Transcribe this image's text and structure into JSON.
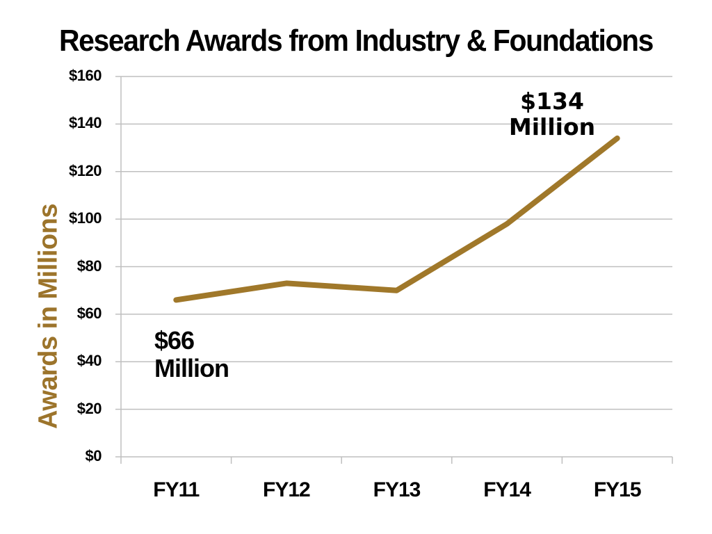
{
  "chart_data": {
    "type": "line",
    "title": "Research Awards from Industry & Foundations",
    "xlabel": "",
    "ylabel": "Awards in Millions",
    "categories": [
      "FY11",
      "FY12",
      "FY13",
      "FY14",
      "FY15"
    ],
    "series": [
      {
        "name": "Research Awards",
        "values": [
          66,
          73,
          70,
          98,
          134
        ],
        "color": "#A0782A"
      }
    ],
    "ylim": [
      0,
      160
    ],
    "y_ticks": [
      "$0",
      "$20",
      "$40",
      "$60",
      "$80",
      "$100",
      "$120",
      "$140",
      "$160"
    ],
    "grid": true,
    "legend": "none",
    "annotations": [
      {
        "text_line1": "$66",
        "text_line2": "Million",
        "category": "FY11"
      },
      {
        "text_line1": "$134",
        "text_line2": "Million",
        "category": "FY15"
      }
    ]
  },
  "colors": {
    "line": "#A0782A",
    "axis_label": "#9C742B",
    "grid": "#BFBFBF",
    "text": "#000000"
  }
}
